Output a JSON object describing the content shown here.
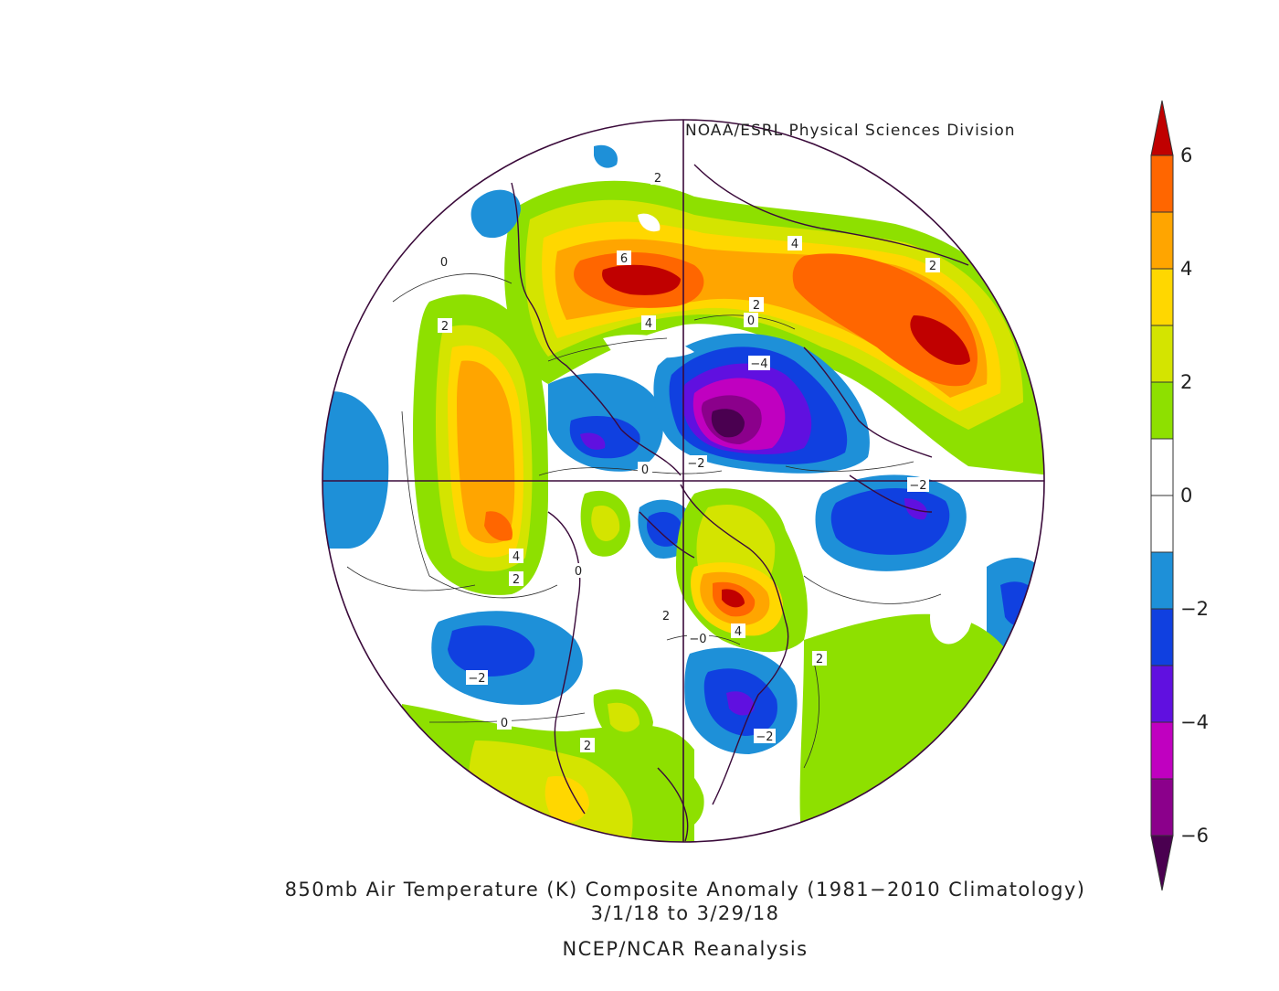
{
  "credit": "NOAA/ESRL Physical Sciences Division",
  "title_line1": "850mb Air Temperature (K) Composite Anomaly (1981−2010 Climatology)",
  "title_line2": "3/1/18   to 3/29/18",
  "title_line3": "NCEP/NCAR Reanalysis",
  "colorbar": {
    "tick_labels": [
      "6",
      "4",
      "2",
      "0",
      "−2",
      "−4",
      "−6"
    ],
    "colors": [
      "#c00000",
      "#ff6600",
      "#ffa500",
      "#ffd700",
      "#d4e400",
      "#8ee000",
      "#ffffff",
      "#ffffff",
      "#1e90d8",
      "#1040e0",
      "#6010e0",
      "#c000c0",
      "#8b008b",
      "#4a0050"
    ]
  },
  "contour_labels": [
    "2",
    "0",
    "2",
    "6",
    "4",
    "4",
    "2",
    "2",
    "0",
    "−4",
    "−2",
    "0",
    "−2",
    "4",
    "2",
    "0",
    "2",
    "−0",
    "4",
    "2",
    "−2",
    "0",
    "2",
    "−2"
  ]
}
